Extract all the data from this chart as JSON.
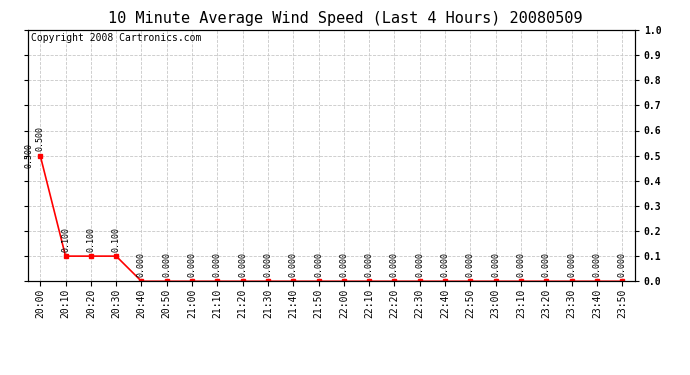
{
  "title": "10 Minute Average Wind Speed (Last 4 Hours) 20080509",
  "copyright_text": "Copyright 2008 Cartronics.com",
  "x_labels": [
    "20:00",
    "20:10",
    "20:20",
    "20:30",
    "20:40",
    "20:50",
    "21:00",
    "21:10",
    "21:20",
    "21:30",
    "21:40",
    "21:50",
    "22:00",
    "22:10",
    "22:20",
    "22:30",
    "22:40",
    "22:50",
    "23:00",
    "23:10",
    "23:20",
    "23:30",
    "23:40",
    "23:50"
  ],
  "y_values": [
    0.5,
    0.1,
    0.1,
    0.1,
    0.0,
    0.0,
    0.0,
    0.0,
    0.0,
    0.0,
    0.0,
    0.0,
    0.0,
    0.0,
    0.0,
    0.0,
    0.0,
    0.0,
    0.0,
    0.0,
    0.0,
    0.0,
    0.0,
    0.0
  ],
  "line_color": "#ff0000",
  "marker_color": "#ff0000",
  "bg_color": "#ffffff",
  "grid_color": "#c8c8c8",
  "ylim": [
    0.0,
    1.0
  ],
  "yticks_right": [
    0.0,
    0.1,
    0.2,
    0.3,
    0.4,
    0.5,
    0.6,
    0.7,
    0.8,
    0.9,
    1.0
  ],
  "title_fontsize": 11,
  "copyright_fontsize": 7,
  "tick_fontsize": 7,
  "annotation_fontsize": 6
}
